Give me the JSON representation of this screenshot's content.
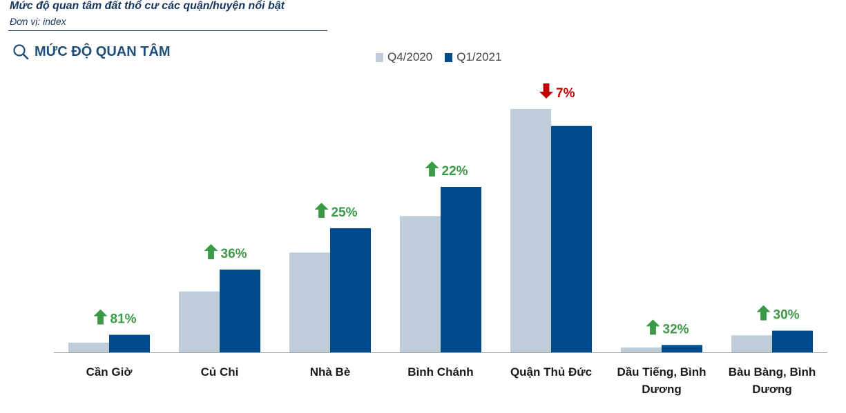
{
  "header": {
    "title": "Mức độ quan tâm đất thổ cư các quận/huyện nổi bật",
    "subtitle": "Đơn vị: index",
    "section_title": "MỨC ĐỘ QUAN TÂM",
    "section_icon": "search-icon"
  },
  "colors": {
    "q4_2020": "#bfcddb",
    "q1_2021": "#004b8d",
    "up": "#3a9a46",
    "down": "#c00000",
    "header_text": "#1f4e79"
  },
  "chart_data": {
    "type": "bar",
    "categories": [
      [
        "Cần Giờ"
      ],
      [
        "Củ Chi"
      ],
      [
        "Nhà Bè"
      ],
      [
        "Bình Chánh"
      ],
      [
        "Quận Thủ Đức"
      ],
      [
        "Dầu Tiếng, Bình",
        "Dương"
      ],
      [
        "Bàu Bàng, Bình",
        "Dương"
      ]
    ],
    "series": [
      {
        "name": "Q4/2020",
        "values": [
          4,
          25,
          41,
          56,
          100,
          2,
          7
        ]
      },
      {
        "name": "Q1/2021",
        "values": [
          7.2,
          34,
          51,
          68,
          93,
          3,
          8.9
        ]
      }
    ],
    "change_labels": [
      "81%",
      "36%",
      "25%",
      "22%",
      "7%",
      "32%",
      "30%"
    ],
    "change_direction": [
      "up",
      "up",
      "up",
      "up",
      "down",
      "up",
      "up"
    ],
    "ylim": [
      0,
      100
    ],
    "legend_position": "top",
    "grid": false
  }
}
